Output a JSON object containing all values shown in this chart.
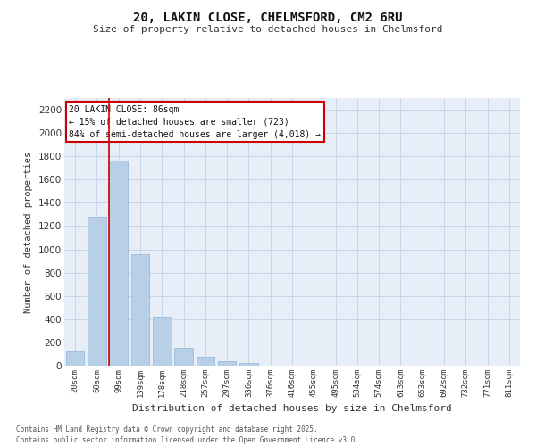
{
  "title_line1": "20, LAKIN CLOSE, CHELMSFORD, CM2 6RU",
  "title_line2": "Size of property relative to detached houses in Chelmsford",
  "xlabel": "Distribution of detached houses by size in Chelmsford",
  "ylabel": "Number of detached properties",
  "categories": [
    "20sqm",
    "60sqm",
    "99sqm",
    "139sqm",
    "178sqm",
    "218sqm",
    "257sqm",
    "297sqm",
    "336sqm",
    "376sqm",
    "416sqm",
    "455sqm",
    "495sqm",
    "534sqm",
    "574sqm",
    "613sqm",
    "653sqm",
    "692sqm",
    "732sqm",
    "771sqm",
    "811sqm"
  ],
  "values": [
    120,
    1280,
    1760,
    960,
    420,
    155,
    75,
    35,
    20,
    0,
    0,
    0,
    0,
    0,
    0,
    0,
    0,
    0,
    0,
    0,
    0
  ],
  "bar_color": "#b8cfe8",
  "bar_edge_color": "#92b4d4",
  "vline_x": 1.57,
  "vline_color": "#cc0000",
  "annotation_title": "20 LAKIN CLOSE: 86sqm",
  "annotation_line2": "← 15% of detached houses are smaller (723)",
  "annotation_line3": "84% of semi-detached houses are larger (4,018) →",
  "annotation_box_color": "#cc0000",
  "ylim": [
    0,
    2300
  ],
  "yticks": [
    0,
    200,
    400,
    600,
    800,
    1000,
    1200,
    1400,
    1600,
    1800,
    2000,
    2200
  ],
  "grid_color": "#c8d4e8",
  "bg_color": "#e8eef8",
  "footer_line1": "Contains HM Land Registry data © Crown copyright and database right 2025.",
  "footer_line2": "Contains public sector information licensed under the Open Government Licence v3.0."
}
